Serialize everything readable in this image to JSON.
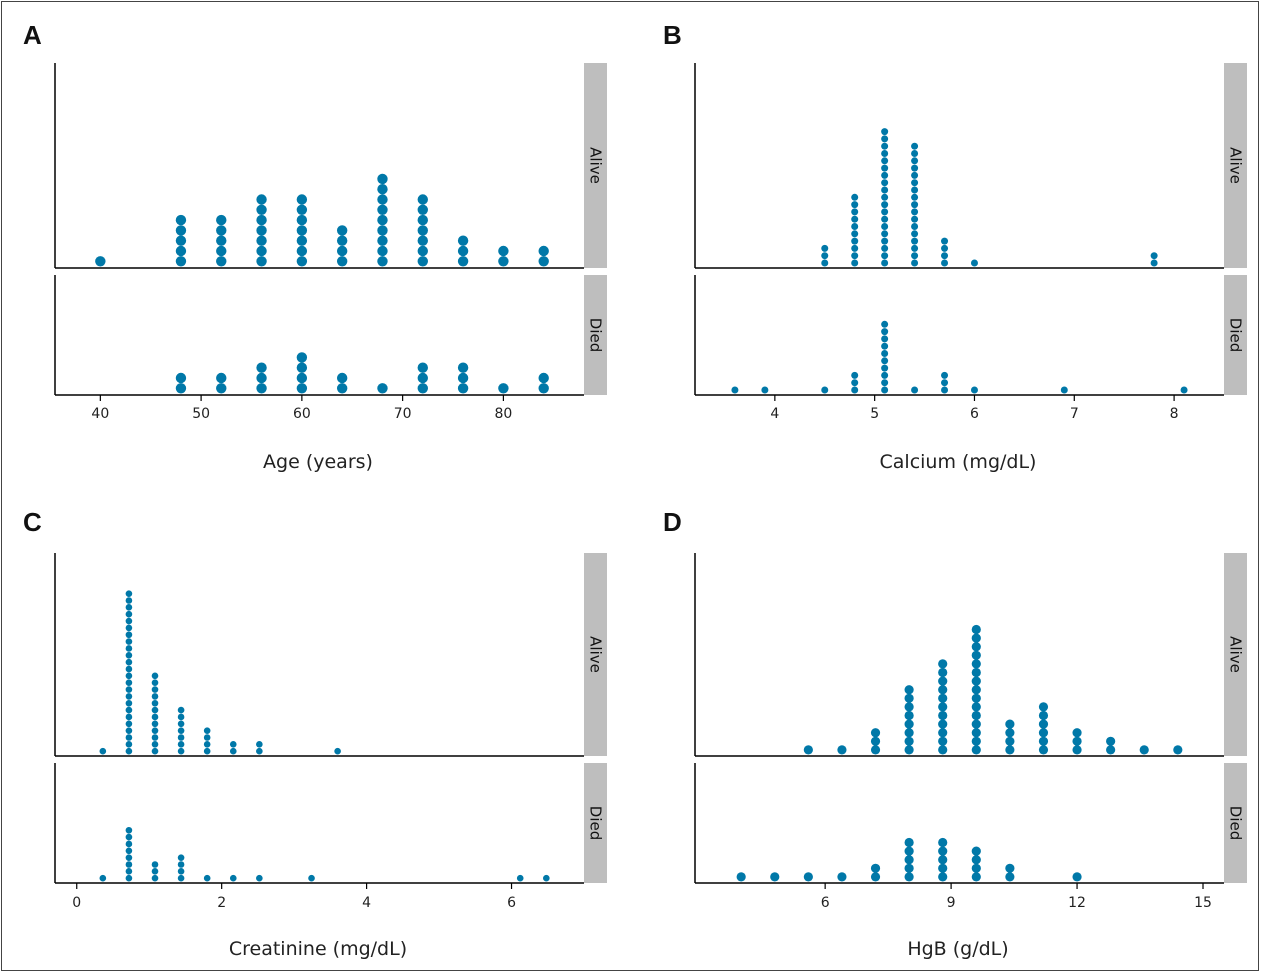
{
  "colors": {
    "dot": "#0078A8",
    "strip": "#BEBEBE",
    "axis": "#000000",
    "text": "#222222"
  },
  "strip_labels": {
    "top": "Alive",
    "bottom": "Died"
  },
  "chart_data": [
    {
      "id": "A",
      "type": "scatter",
      "subtype": "dotplot",
      "panel_label": "A",
      "xlabel": "Age (years)",
      "xlim": [
        35.5,
        88
      ],
      "xticks": [
        40,
        50,
        60,
        70,
        80
      ],
      "tick_labels": [
        "40",
        "50",
        "60",
        "70",
        "80"
      ],
      "facets": [
        "Alive",
        "Died"
      ],
      "series": [
        {
          "name": "Alive",
          "x": [
            40,
            48,
            52,
            56,
            60,
            64,
            68,
            72,
            76,
            80,
            84
          ],
          "counts": [
            1,
            5,
            5,
            7,
            7,
            4,
            9,
            7,
            3,
            2,
            2
          ]
        },
        {
          "name": "Died",
          "x": [
            48,
            52,
            56,
            60,
            64,
            68,
            72,
            76,
            80,
            84
          ],
          "counts": [
            2,
            2,
            3,
            4,
            2,
            1,
            3,
            3,
            1,
            2
          ]
        }
      ]
    },
    {
      "id": "B",
      "type": "scatter",
      "subtype": "dotplot",
      "panel_label": "B",
      "xlabel": "Calcium (mg/dL)",
      "xlim": [
        3.2,
        8.5
      ],
      "xticks": [
        4,
        5,
        6,
        7,
        8
      ],
      "tick_labels": [
        "4",
        "5",
        "6",
        "7",
        "8"
      ],
      "facets": [
        "Alive",
        "Died"
      ],
      "series": [
        {
          "name": "Alive",
          "x": [
            4.5,
            4.8,
            5.1,
            5.4,
            5.7,
            6.0,
            7.8
          ],
          "counts": [
            3,
            10,
            19,
            17,
            4,
            1,
            2
          ]
        },
        {
          "name": "Died",
          "x": [
            3.6,
            3.9,
            4.5,
            4.8,
            5.1,
            5.4,
            5.7,
            6.0,
            6.9,
            8.1
          ],
          "counts": [
            1,
            1,
            1,
            3,
            10,
            1,
            3,
            1,
            1,
            1
          ]
        }
      ]
    },
    {
      "id": "C",
      "type": "scatter",
      "subtype": "dotplot",
      "panel_label": "C",
      "xlabel": "Creatinine (mg/dL)",
      "xlim": [
        -0.3,
        7.0
      ],
      "xticks": [
        0,
        2,
        4,
        6
      ],
      "tick_labels": [
        "0",
        "2",
        "4",
        "6"
      ],
      "facets": [
        "Alive",
        "Died"
      ],
      "series": [
        {
          "name": "Alive",
          "x": [
            0.36,
            0.72,
            1.08,
            1.44,
            1.8,
            2.16,
            2.52,
            3.6
          ],
          "counts": [
            1,
            24,
            12,
            7,
            4,
            2,
            2,
            1
          ]
        },
        {
          "name": "Died",
          "x": [
            0.36,
            0.72,
            1.08,
            1.44,
            1.8,
            2.16,
            2.52,
            3.24,
            6.12,
            6.48
          ],
          "counts": [
            1,
            8,
            3,
            4,
            1,
            1,
            1,
            1,
            1,
            1
          ]
        }
      ]
    },
    {
      "id": "D",
      "type": "scatter",
      "subtype": "dotplot",
      "panel_label": "D",
      "xlabel": "HgB (g/dL)",
      "xlim": [
        2.9,
        15.5
      ],
      "xticks": [
        6,
        9,
        12,
        15
      ],
      "tick_labels": [
        "6",
        "9",
        "12",
        "15"
      ],
      "facets": [
        "Alive",
        "Died"
      ],
      "series": [
        {
          "name": "Alive",
          "x": [
            5.6,
            6.4,
            7.2,
            8.0,
            8.8,
            9.6,
            10.4,
            11.2,
            12.0,
            12.8,
            13.6,
            14.4
          ],
          "counts": [
            1,
            1,
            3,
            8,
            11,
            15,
            4,
            6,
            3,
            2,
            1,
            1
          ]
        },
        {
          "name": "Died",
          "x": [
            4.0,
            4.8,
            5.6,
            6.4,
            7.2,
            8.0,
            8.8,
            9.6,
            10.4,
            12.0
          ],
          "counts": [
            1,
            1,
            1,
            1,
            2,
            5,
            5,
            4,
            2,
            1
          ]
        }
      ]
    }
  ]
}
